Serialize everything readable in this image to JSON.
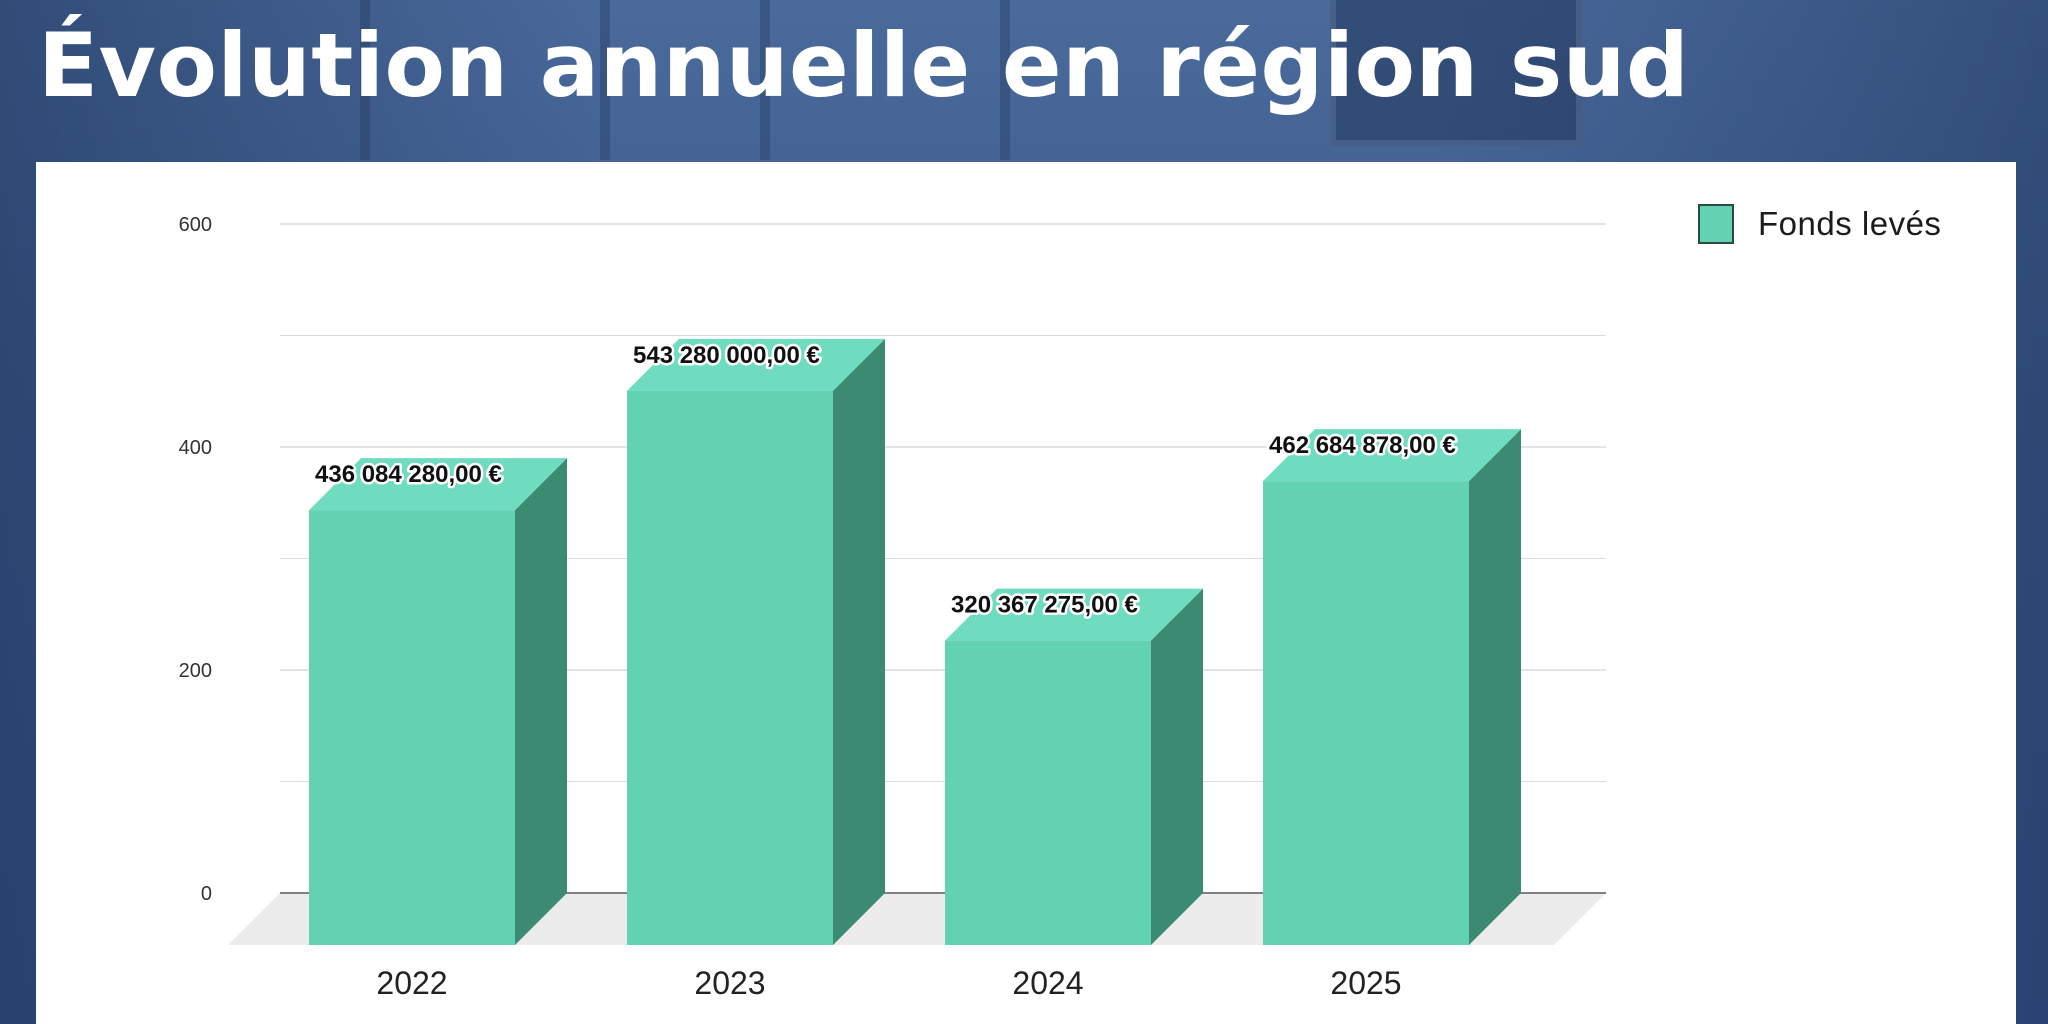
{
  "page": {
    "title": "Évolution annuelle en région sud"
  },
  "chart_data": {
    "type": "bar",
    "style": "3d-column",
    "title": "",
    "xlabel": "",
    "ylabel": "",
    "categories": [
      "2022",
      "2023",
      "2024",
      "2025"
    ],
    "series": [
      {
        "name": "Fonds levés",
        "values": [
          436084280.0,
          543280000.0,
          320367275.0,
          462684878.0
        ],
        "display_values": [
          "436 084 280,00  €",
          "543 280 000,00  €",
          "320 367 275,00  €",
          "462 684 878,00  €"
        ]
      }
    ],
    "bar_scale_values": [
      390,
      497,
      273,
      416
    ],
    "y_ticks": [
      0,
      200,
      400,
      600
    ],
    "ylim": [
      0,
      600
    ],
    "grid": true,
    "legend_position": "top-right",
    "colors": {
      "bar_front": "#62d2b2",
      "bar_side": "#3c8a72",
      "bar_top": "#6fdcbf",
      "floor": "#ececec",
      "grid": "#dcdcdc",
      "baseline": "#5a5a5a"
    }
  }
}
